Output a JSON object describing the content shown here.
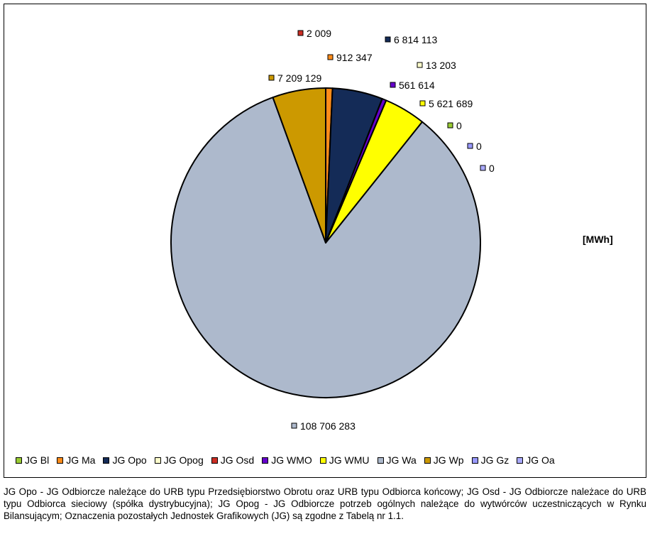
{
  "chart_data": {
    "type": "pie",
    "unit_label": "[MWh]",
    "slices": [
      {
        "name": "JG Bl",
        "value": 0,
        "label": "0",
        "color": "#99cc33"
      },
      {
        "name": "JG Ma",
        "value": 912347,
        "label": "912 347",
        "color": "#ff8c1a"
      },
      {
        "name": "JG Opo",
        "value": 6814113,
        "label": "6 814 113",
        "color": "#142b57"
      },
      {
        "name": "JG Opog",
        "value": 13203,
        "label": "13 203",
        "color": "#ffffcc"
      },
      {
        "name": "JG Osd",
        "value": 2009,
        "label": "2 009",
        "color": "#cc2e24"
      },
      {
        "name": "JG WMO",
        "value": 561614,
        "label": "561 614",
        "color": "#6600cc"
      },
      {
        "name": "JG WMU",
        "value": 5621689,
        "label": "5 621 689",
        "color": "#ffff00"
      },
      {
        "name": "JG Wa",
        "value": 108706283,
        "label": "108 706 283",
        "color": "#adb9cc"
      },
      {
        "name": "JG Wp",
        "value": 7209129,
        "label": "7 209 129",
        "color": "#cc9900"
      },
      {
        "name": "JG Gz",
        "value": 0,
        "label": "0",
        "color": "#9999ff"
      },
      {
        "name": "JG Oa",
        "value": 0,
        "label": "0",
        "color": "#aaaaff"
      }
    ],
    "legend_position": "bottom"
  },
  "caption": "JG Opo - JG Odbiorcze należące do URB typu Przedsiębiorstwo Obrotu oraz URB typu Odbiorca końcowy; JG Osd - JG Odbiorcze należace do URB typu Odbiorca sieciowy (spółka dystrybucyjna); JG Opog - JG Odbiorcze potrzeb ogólnych należące do wytwórców uczestniczących w Rynku Bilansującym; Oznaczenia pozostałych Jednostek Grafikowych (JG) są zgodne z Tabelą nr 1.1."
}
